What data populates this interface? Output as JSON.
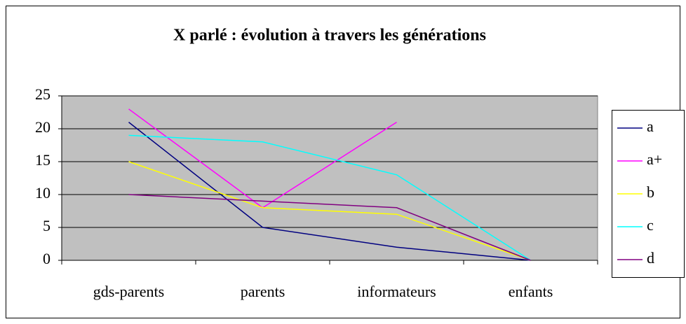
{
  "chart_data": {
    "type": "line",
    "title": "X parlé : évolution à travers les générations",
    "categories": [
      "gds-parents",
      "parents",
      "informateurs",
      "enfants"
    ],
    "series": [
      {
        "name": "a",
        "color": "#000080",
        "values": [
          21,
          5,
          2,
          0
        ]
      },
      {
        "name": "a+",
        "color": "#ff00ff",
        "values": [
          23,
          8,
          21,
          null
        ]
      },
      {
        "name": "b",
        "color": "#ffff00",
        "values": [
          15,
          8,
          7,
          0
        ]
      },
      {
        "name": "c",
        "color": "#00ffff",
        "values": [
          19,
          18,
          13,
          0
        ]
      },
      {
        "name": "d",
        "color": "#800080",
        "values": [
          10,
          9,
          8,
          0
        ]
      }
    ],
    "ylim": [
      0,
      25
    ],
    "yticks": [
      0,
      5,
      10,
      15,
      20,
      25
    ],
    "grid": true,
    "legend": "right",
    "plot_background": "#c0c0c0"
  }
}
